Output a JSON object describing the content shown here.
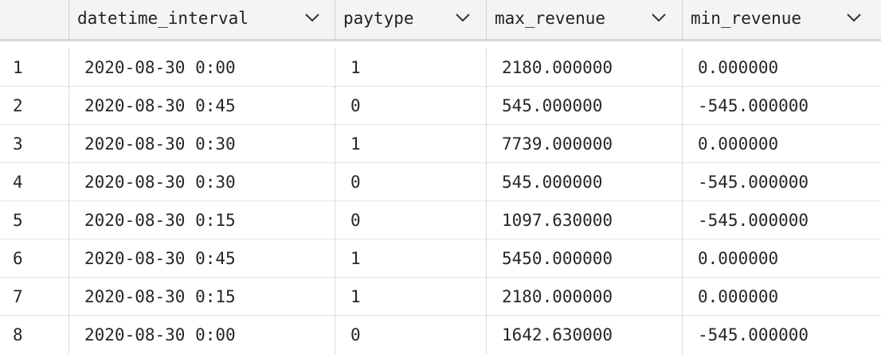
{
  "table": {
    "columns": [
      {
        "label": "datetime_interval",
        "icon": "chevron-down-icon"
      },
      {
        "label": "paytype",
        "icon": "chevron-down-icon"
      },
      {
        "label": "max_revenue",
        "icon": "chevron-down-icon"
      },
      {
        "label": "min_revenue",
        "icon": "chevron-down-icon"
      }
    ],
    "rows": [
      {
        "num": "1",
        "datetime_interval": "2020-08-30 0:00",
        "paytype": "1",
        "max_revenue": "2180.000000",
        "min_revenue": "0.000000"
      },
      {
        "num": "2",
        "datetime_interval": "2020-08-30 0:45",
        "paytype": "0",
        "max_revenue": "545.000000",
        "min_revenue": "-545.000000"
      },
      {
        "num": "3",
        "datetime_interval": "2020-08-30 0:30",
        "paytype": "1",
        "max_revenue": "7739.000000",
        "min_revenue": "0.000000"
      },
      {
        "num": "4",
        "datetime_interval": "2020-08-30 0:30",
        "paytype": "0",
        "max_revenue": "545.000000",
        "min_revenue": "-545.000000"
      },
      {
        "num": "5",
        "datetime_interval": "2020-08-30 0:15",
        "paytype": "0",
        "max_revenue": "1097.630000",
        "min_revenue": "-545.000000"
      },
      {
        "num": "6",
        "datetime_interval": "2020-08-30 0:45",
        "paytype": "1",
        "max_revenue": "5450.000000",
        "min_revenue": "0.000000"
      },
      {
        "num": "7",
        "datetime_interval": "2020-08-30 0:15",
        "paytype": "1",
        "max_revenue": "2180.000000",
        "min_revenue": "0.000000"
      },
      {
        "num": "8",
        "datetime_interval": "2020-08-30 0:00",
        "paytype": "0",
        "max_revenue": "1642.630000",
        "min_revenue": "-545.000000"
      }
    ]
  }
}
